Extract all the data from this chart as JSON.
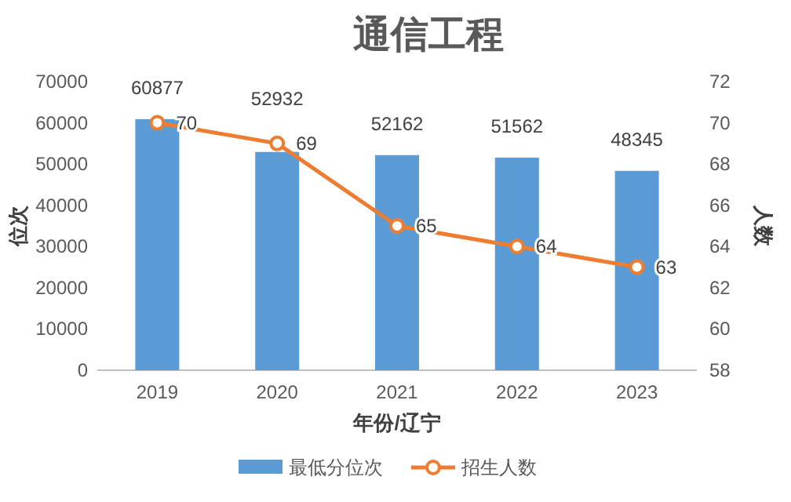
{
  "chart_data": {
    "type": "bar",
    "title": "通信工程",
    "xlabel": "年份/辽宁",
    "ylabel": "位次",
    "y2label": "人数",
    "categories": [
      "2019",
      "2020",
      "2021",
      "2022",
      "2023"
    ],
    "series": [
      {
        "name": "最低分位次",
        "color": "#5b9bd5",
        "values": [
          60877,
          52932,
          52162,
          51562,
          48345
        ]
      },
      {
        "name": "招生人数",
        "type": "line",
        "axis": "y2",
        "color": "#ed7d31",
        "values": [
          70,
          69,
          65,
          64,
          63
        ]
      }
    ],
    "ylim": [
      0,
      70000
    ],
    "yticks": [
      0,
      10000,
      20000,
      30000,
      40000,
      50000,
      60000,
      70000
    ],
    "y2lim": [
      58,
      72
    ],
    "y2ticks": [
      58,
      60,
      62,
      64,
      66,
      68,
      70,
      72
    ],
    "data_labels": true,
    "legend": "bottom",
    "marker": "circle",
    "grid": false
  }
}
